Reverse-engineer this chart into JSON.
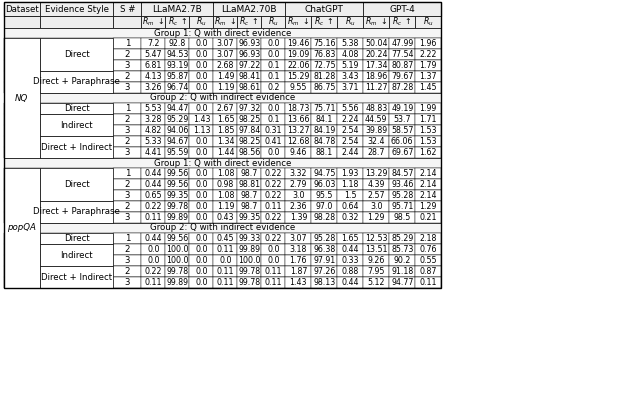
{
  "col_model_headers": [
    "LLaMA2.7B",
    "LLaMA2.70B",
    "ChatGPT",
    "GPT-4"
  ],
  "rows": [
    {
      "type": "group_header",
      "text": "Group 1: Q with direct evidence",
      "dataset": "NQ"
    },
    {
      "type": "data",
      "dataset": "NQ",
      "evidence": "Direct",
      "s": "1",
      "llama27b": [
        7.2,
        92.8,
        0.0
      ],
      "llama270b": [
        3.07,
        96.93,
        0.0
      ],
      "chatgpt": [
        19.46,
        75.16,
        5.38
      ],
      "gpt4": [
        50.04,
        47.99,
        1.96
      ]
    },
    {
      "type": "data",
      "dataset": "NQ",
      "evidence": "Direct",
      "s": "2",
      "llama27b": [
        5.47,
        94.53,
        0.0
      ],
      "llama270b": [
        3.07,
        96.93,
        0.0
      ],
      "chatgpt": [
        19.09,
        76.83,
        4.08
      ],
      "gpt4": [
        20.24,
        77.54,
        2.22
      ]
    },
    {
      "type": "data",
      "dataset": "NQ",
      "evidence": "Direct",
      "s": "3",
      "llama27b": [
        6.81,
        93.19,
        0.0
      ],
      "llama270b": [
        2.68,
        97.22,
        0.1
      ],
      "chatgpt": [
        22.06,
        72.75,
        5.19
      ],
      "gpt4": [
        17.34,
        80.87,
        1.79
      ]
    },
    {
      "type": "data",
      "dataset": "NQ",
      "evidence": "Direct + Paraphrase",
      "s": "2",
      "llama27b": [
        4.13,
        95.87,
        0.0
      ],
      "llama270b": [
        1.49,
        98.41,
        0.1
      ],
      "chatgpt": [
        15.29,
        81.28,
        3.43
      ],
      "gpt4": [
        18.96,
        79.67,
        1.37
      ]
    },
    {
      "type": "data",
      "dataset": "NQ",
      "evidence": "Direct + Paraphrase",
      "s": "3",
      "llama27b": [
        3.26,
        96.74,
        0.0
      ],
      "llama270b": [
        1.19,
        98.61,
        0.2
      ],
      "chatgpt": [
        9.55,
        86.75,
        3.71
      ],
      "gpt4": [
        11.27,
        87.28,
        1.45
      ]
    },
    {
      "type": "group_header",
      "text": "Group 2: Q with indirect evidence",
      "dataset": "NQ"
    },
    {
      "type": "data",
      "dataset": "NQ",
      "evidence": "Direct",
      "s": "1",
      "llama27b": [
        5.53,
        94.47,
        0.0
      ],
      "llama270b": [
        2.67,
        97.32,
        0.0
      ],
      "chatgpt": [
        18.73,
        75.71,
        5.56
      ],
      "gpt4": [
        48.83,
        49.19,
        1.99
      ]
    },
    {
      "type": "data",
      "dataset": "NQ",
      "evidence": "Indirect",
      "s": "2",
      "llama27b": [
        3.28,
        95.29,
        1.43
      ],
      "llama270b": [
        1.65,
        98.25,
        0.1
      ],
      "chatgpt": [
        13.66,
        84.1,
        2.24
      ],
      "gpt4": [
        44.59,
        53.7,
        1.71
      ]
    },
    {
      "type": "data",
      "dataset": "NQ",
      "evidence": "Indirect",
      "s": "3",
      "llama27b": [
        4.82,
        94.06,
        1.13
      ],
      "llama270b": [
        1.85,
        97.84,
        0.31
      ],
      "chatgpt": [
        13.27,
        84.19,
        2.54
      ],
      "gpt4": [
        39.89,
        58.57,
        1.53
      ]
    },
    {
      "type": "data",
      "dataset": "NQ",
      "evidence": "Direct + Indirect",
      "s": "2",
      "llama27b": [
        5.33,
        94.67,
        0.0
      ],
      "llama270b": [
        1.34,
        98.25,
        0.41
      ],
      "chatgpt": [
        12.68,
        84.78,
        2.54
      ],
      "gpt4": [
        32.4,
        66.06,
        1.53
      ]
    },
    {
      "type": "data",
      "dataset": "NQ",
      "evidence": "Direct + Indirect",
      "s": "3",
      "llama27b": [
        4.41,
        95.59,
        0.0
      ],
      "llama270b": [
        1.44,
        98.56,
        0.0
      ],
      "chatgpt": [
        9.46,
        88.1,
        2.44
      ],
      "gpt4": [
        28.7,
        69.67,
        1.62
      ]
    },
    {
      "type": "group_header",
      "text": "Group 1: Q with direct evidence",
      "dataset": "popQA"
    },
    {
      "type": "data",
      "dataset": "popQA",
      "evidence": "Direct",
      "s": "1",
      "llama27b": [
        0.44,
        99.56,
        0.0
      ],
      "llama270b": [
        1.08,
        98.7,
        0.22
      ],
      "chatgpt": [
        3.32,
        94.75,
        1.93
      ],
      "gpt4": [
        13.29,
        84.57,
        2.14
      ]
    },
    {
      "type": "data",
      "dataset": "popQA",
      "evidence": "Direct",
      "s": "2",
      "llama27b": [
        0.44,
        99.56,
        0.0
      ],
      "llama270b": [
        0.98,
        98.81,
        0.22
      ],
      "chatgpt": [
        2.79,
        96.03,
        1.18
      ],
      "gpt4": [
        4.39,
        93.46,
        2.14
      ]
    },
    {
      "type": "data",
      "dataset": "popQA",
      "evidence": "Direct",
      "s": "3",
      "llama27b": [
        0.65,
        99.35,
        0.0
      ],
      "llama270b": [
        1.08,
        98.7,
        0.22
      ],
      "chatgpt": [
        3.0,
        95.5,
        1.5
      ],
      "gpt4": [
        2.57,
        95.28,
        2.14
      ]
    },
    {
      "type": "data",
      "dataset": "popQA",
      "evidence": "Direct + Paraphrase",
      "s": "2",
      "llama27b": [
        0.22,
        99.78,
        0.0
      ],
      "llama270b": [
        1.19,
        98.7,
        0.11
      ],
      "chatgpt": [
        2.36,
        97.0,
        0.64
      ],
      "gpt4": [
        3.0,
        95.71,
        1.29
      ]
    },
    {
      "type": "data",
      "dataset": "popQA",
      "evidence": "Direct + Paraphrase",
      "s": "3",
      "llama27b": [
        0.11,
        99.89,
        0.0
      ],
      "llama270b": [
        0.43,
        99.35,
        0.22
      ],
      "chatgpt": [
        1.39,
        98.28,
        0.32
      ],
      "gpt4": [
        1.29,
        98.5,
        0.21
      ]
    },
    {
      "type": "group_header",
      "text": "Group 2: Q with indirect evidence",
      "dataset": "popQA"
    },
    {
      "type": "data",
      "dataset": "popQA",
      "evidence": "Direct",
      "s": "1",
      "llama27b": [
        0.44,
        99.56,
        0.0
      ],
      "llama270b": [
        0.45,
        99.33,
        0.22
      ],
      "chatgpt": [
        3.07,
        95.28,
        1.65
      ],
      "gpt4": [
        12.53,
        85.29,
        2.18
      ]
    },
    {
      "type": "data",
      "dataset": "popQA",
      "evidence": "Indirect",
      "s": "2",
      "llama27b": [
        0.0,
        100.0,
        0.0
      ],
      "llama270b": [
        0.11,
        99.89,
        0.0
      ],
      "chatgpt": [
        3.18,
        96.38,
        0.44
      ],
      "gpt4": [
        13.51,
        85.73,
        0.76
      ]
    },
    {
      "type": "data",
      "dataset": "popQA",
      "evidence": "Indirect",
      "s": "3",
      "llama27b": [
        0.0,
        100.0,
        0.0
      ],
      "llama270b": [
        0.0,
        100.0,
        0.0
      ],
      "chatgpt": [
        1.76,
        97.91,
        0.33
      ],
      "gpt4": [
        9.26,
        90.2,
        0.55
      ]
    },
    {
      "type": "data",
      "dataset": "popQA",
      "evidence": "Direct + Indirect",
      "s": "2",
      "llama27b": [
        0.22,
        99.78,
        0.0
      ],
      "llama270b": [
        0.11,
        99.78,
        0.11
      ],
      "chatgpt": [
        1.87,
        97.26,
        0.88
      ],
      "gpt4": [
        7.95,
        91.18,
        0.87
      ]
    },
    {
      "type": "data",
      "dataset": "popQA",
      "evidence": "Direct + Indirect",
      "s": "3",
      "llama27b": [
        0.11,
        99.89,
        0.0
      ],
      "llama270b": [
        0.11,
        99.78,
        0.11
      ],
      "chatgpt": [
        1.43,
        98.13,
        0.44
      ],
      "gpt4": [
        5.12,
        94.77,
        0.11
      ]
    }
  ],
  "bg_color": "#ffffff",
  "header_bg": "#eeeeee",
  "group_header_bg": "#f5f5f5",
  "border_color": "#000000",
  "text_color": "#000000",
  "font_size": 6.2
}
